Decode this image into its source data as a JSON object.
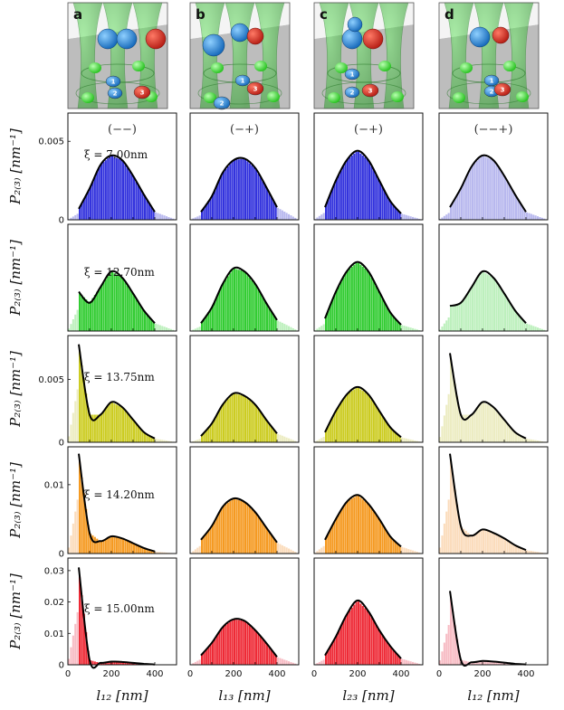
{
  "figure": {
    "panel_letters": [
      "a",
      "b",
      "c",
      "d"
    ],
    "bead_numbers": [
      "1",
      "2",
      "3"
    ],
    "column_signs": [
      "(−−)",
      "(−+)",
      "(−+)",
      "(−−+)"
    ],
    "xi_labels": [
      "ξ = 7.00nm",
      "ξ = 12.70nm",
      "ξ = 13.75nm",
      "ξ = 14.20nm",
      "ξ = 15.00nm"
    ],
    "ylabel": "P₂₍₃₎ [nm⁻¹]",
    "xlabels": [
      "l₁₂ [nm]",
      "l₁₃ [nm]",
      "l₂₃ [nm]",
      "l₁₂ [nm]"
    ],
    "colors": {
      "row_bar": [
        "#3333dd",
        "#33cc33",
        "#cccc22",
        "#f59a22",
        "#ee2a36"
      ],
      "row_light": [
        "#b8b8ee",
        "#bdf0bd",
        "#ececc2",
        "#fbdcbc",
        "#f7bcc4"
      ],
      "curve": "#000000"
    }
  },
  "chart_data": [
    {
      "type": "bar",
      "row": 0,
      "col": 0,
      "x": [
        50,
        100,
        150,
        200,
        250,
        300,
        350,
        400
      ],
      "y": [
        0.0007,
        0.002,
        0.0035,
        0.0041,
        0.0038,
        0.0028,
        0.0016,
        0.0005
      ],
      "ylim": [
        0,
        0.0068
      ],
      "yticks": [
        0,
        0.005
      ],
      "xlim": [
        0,
        500
      ],
      "xticks": [
        0,
        200,
        400
      ],
      "shape": "gauss"
    },
    {
      "type": "bar",
      "row": 0,
      "col": 1,
      "x": [
        50,
        100,
        150,
        200,
        250,
        300,
        350,
        400
      ],
      "y": [
        0.0005,
        0.0015,
        0.003,
        0.0038,
        0.0039,
        0.0033,
        0.0021,
        0.0008
      ],
      "ylim": [
        0,
        0.0068
      ],
      "xlim": [
        0,
        500
      ],
      "shape": "gauss"
    },
    {
      "type": "bar",
      "row": 0,
      "col": 2,
      "x": [
        50,
        100,
        150,
        200,
        250,
        300,
        350,
        400
      ],
      "y": [
        0.0008,
        0.0025,
        0.0038,
        0.0044,
        0.0038,
        0.0025,
        0.0012,
        0.0004
      ],
      "ylim": [
        0,
        0.0068
      ],
      "xlim": [
        0,
        500
      ],
      "shape": "gauss"
    },
    {
      "type": "bar",
      "row": 0,
      "col": 3,
      "x": [
        50,
        100,
        150,
        200,
        250,
        300,
        350,
        400
      ],
      "y": [
        0.0008,
        0.002,
        0.0034,
        0.0041,
        0.0038,
        0.0028,
        0.0016,
        0.0005
      ],
      "ylim": [
        0,
        0.0068
      ],
      "xlim": [
        0,
        500
      ],
      "shape": "gauss"
    },
    {
      "type": "bar",
      "row": 1,
      "col": 0,
      "x": [
        50,
        100,
        150,
        200,
        250,
        300,
        350,
        400
      ],
      "y": [
        0.0025,
        0.0018,
        0.0028,
        0.0038,
        0.0034,
        0.0024,
        0.0013,
        0.0005
      ],
      "ylim": [
        0,
        0.0068
      ],
      "xlim": [
        0,
        500
      ],
      "shape": "bimodal"
    },
    {
      "type": "bar",
      "row": 1,
      "col": 1,
      "x": [
        50,
        100,
        150,
        200,
        250,
        300,
        350,
        400
      ],
      "y": [
        0.0005,
        0.0015,
        0.003,
        0.004,
        0.0038,
        0.003,
        0.0018,
        0.0007
      ],
      "ylim": [
        0,
        0.0068
      ],
      "xlim": [
        0,
        500
      ],
      "shape": "gauss"
    },
    {
      "type": "bar",
      "row": 1,
      "col": 2,
      "x": [
        50,
        100,
        150,
        200,
        250,
        300,
        350,
        400
      ],
      "y": [
        0.0008,
        0.0025,
        0.0038,
        0.0044,
        0.0038,
        0.0025,
        0.0012,
        0.0004
      ],
      "ylim": [
        0,
        0.0068
      ],
      "xlim": [
        0,
        500
      ],
      "shape": "gauss"
    },
    {
      "type": "bar",
      "row": 1,
      "col": 3,
      "x": [
        50,
        100,
        150,
        200,
        250,
        300,
        350,
        400
      ],
      "y": [
        0.0016,
        0.0018,
        0.0028,
        0.0038,
        0.0034,
        0.0024,
        0.0013,
        0.0005
      ],
      "ylim": [
        0,
        0.0068
      ],
      "xlim": [
        0,
        500
      ],
      "shape": "bimodal"
    },
    {
      "type": "bar",
      "row": 2,
      "col": 0,
      "x": [
        50,
        100,
        150,
        200,
        250,
        300,
        350,
        400
      ],
      "y": [
        0.0078,
        0.0022,
        0.0022,
        0.0032,
        0.0028,
        0.0018,
        0.0008,
        0.0003
      ],
      "ylim": [
        0,
        0.0085
      ],
      "yticks": [
        0,
        0.005
      ],
      "xlim": [
        0,
        500
      ],
      "shape": "bimodal"
    },
    {
      "type": "bar",
      "row": 2,
      "col": 1,
      "x": [
        50,
        100,
        150,
        200,
        250,
        300,
        350,
        400
      ],
      "y": [
        0.0005,
        0.0015,
        0.003,
        0.0039,
        0.0037,
        0.003,
        0.0018,
        0.0007
      ],
      "ylim": [
        0,
        0.0085
      ],
      "xlim": [
        0,
        500
      ],
      "shape": "gauss"
    },
    {
      "type": "bar",
      "row": 2,
      "col": 2,
      "x": [
        50,
        100,
        150,
        200,
        250,
        300,
        350,
        400
      ],
      "y": [
        0.0008,
        0.0025,
        0.0038,
        0.0044,
        0.0038,
        0.0025,
        0.0012,
        0.0004
      ],
      "ylim": [
        0,
        0.0085
      ],
      "xlim": [
        0,
        500
      ],
      "shape": "gauss"
    },
    {
      "type": "bar",
      "row": 2,
      "col": 3,
      "x": [
        50,
        100,
        150,
        200,
        250,
        300,
        350,
        400
      ],
      "y": [
        0.0071,
        0.0022,
        0.0022,
        0.0032,
        0.0028,
        0.0018,
        0.0008,
        0.0003
      ],
      "ylim": [
        0,
        0.0085
      ],
      "xlim": [
        0,
        500
      ],
      "shape": "bimodal"
    },
    {
      "type": "bar",
      "row": 3,
      "col": 0,
      "x": [
        50,
        100,
        150,
        200,
        250,
        300,
        350,
        400
      ],
      "y": [
        0.0145,
        0.003,
        0.0018,
        0.0025,
        0.0022,
        0.0015,
        0.0008,
        0.0003
      ],
      "ylim": [
        0,
        0.0155
      ],
      "yticks": [
        0,
        0.01
      ],
      "xlim": [
        0,
        500
      ],
      "shape": "bimodal"
    },
    {
      "type": "bar",
      "row": 3,
      "col": 1,
      "x": [
        50,
        100,
        150,
        200,
        250,
        300,
        350,
        400
      ],
      "y": [
        0.002,
        0.004,
        0.0068,
        0.008,
        0.0075,
        0.006,
        0.0038,
        0.0016
      ],
      "ylim": [
        0,
        0.0155
      ],
      "xlim": [
        0,
        500
      ],
      "shape": "gauss"
    },
    {
      "type": "bar",
      "row": 3,
      "col": 2,
      "x": [
        50,
        100,
        150,
        200,
        250,
        300,
        350,
        400
      ],
      "y": [
        0.002,
        0.005,
        0.0075,
        0.0085,
        0.0072,
        0.005,
        0.0025,
        0.001
      ],
      "ylim": [
        0,
        0.0155
      ],
      "xlim": [
        0,
        500
      ],
      "shape": "gauss"
    },
    {
      "type": "bar",
      "row": 3,
      "col": 3,
      "x": [
        50,
        100,
        150,
        200,
        250,
        300,
        350,
        400
      ],
      "y": [
        0.0145,
        0.004,
        0.0026,
        0.0035,
        0.003,
        0.0022,
        0.0012,
        0.0005
      ],
      "ylim": [
        0,
        0.0155
      ],
      "xlim": [
        0,
        500
      ],
      "shape": "bimodal"
    },
    {
      "type": "bar",
      "row": 4,
      "col": 0,
      "x": [
        50,
        100,
        150,
        200,
        250,
        300,
        350,
        400
      ],
      "y": [
        0.031,
        0.0015,
        0.0006,
        0.001,
        0.0009,
        0.0006,
        0.0003,
        0.0001
      ],
      "ylim": [
        0,
        0.034
      ],
      "yticks": [
        0,
        0.01,
        0.02,
        0.03
      ],
      "xlim": [
        0,
        500
      ],
      "shape": "bimodal"
    },
    {
      "type": "bar",
      "row": 4,
      "col": 1,
      "x": [
        50,
        100,
        150,
        200,
        250,
        300,
        350,
        400
      ],
      "y": [
        0.003,
        0.007,
        0.012,
        0.0145,
        0.014,
        0.011,
        0.007,
        0.0025
      ],
      "ylim": [
        0,
        0.034
      ],
      "xlim": [
        0,
        500
      ],
      "shape": "gauss"
    },
    {
      "type": "bar",
      "row": 4,
      "col": 2,
      "x": [
        50,
        100,
        150,
        200,
        250,
        300,
        350,
        400
      ],
      "y": [
        0.003,
        0.009,
        0.016,
        0.0205,
        0.017,
        0.011,
        0.006,
        0.002
      ],
      "ylim": [
        0,
        0.034
      ],
      "xlim": [
        0,
        500
      ],
      "shape": "gauss"
    },
    {
      "type": "bar",
      "row": 4,
      "col": 3,
      "x": [
        50,
        100,
        150,
        200,
        250,
        300,
        350,
        400
      ],
      "y": [
        0.0235,
        0.0016,
        0.0008,
        0.0012,
        0.001,
        0.0007,
        0.0003,
        0.0001
      ],
      "ylim": [
        0,
        0.034
      ],
      "xlim": [
        0,
        500
      ],
      "shape": "bimodal"
    }
  ]
}
